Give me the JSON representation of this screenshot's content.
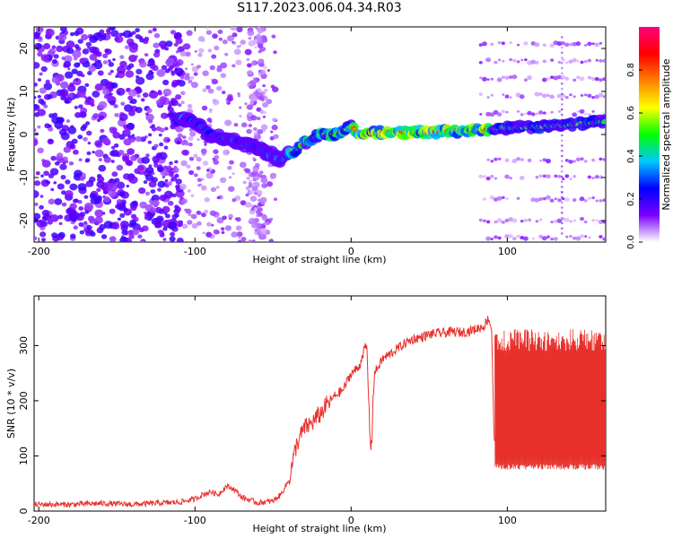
{
  "title": "S117.2023.006.04.34.R03",
  "chart_data": [
    {
      "type": "heatmap",
      "xlabel": "Height of straight line (km)",
      "ylabel": "Frequency (Hz)",
      "xlim": [
        -203,
        163
      ],
      "ylim": [
        -25,
        25
      ],
      "xticks": [
        -200,
        -100,
        0,
        100
      ],
      "yticks": [
        -20,
        -10,
        0,
        10,
        20
      ],
      "colorbar": {
        "label": "Normalized spectral amplitude",
        "range": [
          0,
          1
        ],
        "ticks": [
          0.0,
          0.2,
          0.4,
          0.6,
          0.8
        ],
        "tick_labels": [
          "0.0",
          "0.2",
          "0.4",
          "0.6",
          "0.8"
        ],
        "colors": [
          "#ffffff",
          "#7a00ff",
          "#0000ff",
          "#00c8ff",
          "#00ff00",
          "#ffff00",
          "#ff8000",
          "#ff0000",
          "#ff0080"
        ]
      },
      "ridge": [
        {
          "x": -110,
          "y": 4
        },
        {
          "x": -100,
          "y": 3
        },
        {
          "x": -90,
          "y": 0
        },
        {
          "x": -80,
          "y": -1
        },
        {
          "x": -60,
          "y": -3
        },
        {
          "x": -45,
          "y": -6
        },
        {
          "x": -30,
          "y": -2
        },
        {
          "x": -20,
          "y": 0
        },
        {
          "x": -10,
          "y": 0
        },
        {
          "x": 0,
          "y": 2
        },
        {
          "x": 5,
          "y": 0
        },
        {
          "x": 20,
          "y": 0.5
        },
        {
          "x": 50,
          "y": 0.5
        },
        {
          "x": 80,
          "y": 1
        },
        {
          "x": 100,
          "y": 1.5
        },
        {
          "x": 130,
          "y": 2
        },
        {
          "x": 163,
          "y": 3
        }
      ],
      "harmonic_bands_hz": [
        -24,
        -20,
        -15,
        -10,
        -6,
        5,
        9,
        13,
        17,
        21
      ]
    },
    {
      "type": "line",
      "xlabel": "Height of straight line (km)",
      "ylabel": "SNR (10 * v/v)",
      "xlim": [
        -203,
        163
      ],
      "ylim": [
        0,
        390
      ],
      "xticks": [
        -200,
        -100,
        0,
        100
      ],
      "yticks": [
        0,
        100,
        200,
        300
      ],
      "color": "#e8302a",
      "x": [
        -203,
        -180,
        -160,
        -140,
        -120,
        -110,
        -100,
        -95,
        -90,
        -85,
        -80,
        -75,
        -70,
        -60,
        -50,
        -45,
        -40,
        -35,
        -30,
        -25,
        -20,
        -15,
        -10,
        -5,
        0,
        5,
        8,
        10,
        12,
        13,
        14,
        15,
        18,
        20,
        25,
        30,
        35,
        40,
        45,
        50,
        55,
        60,
        65,
        70,
        75,
        80,
        85,
        88,
        90,
        91,
        92,
        95,
        100,
        110,
        120,
        130,
        140,
        150,
        163
      ],
      "y": [
        12,
        12,
        14,
        12,
        15,
        16,
        22,
        30,
        35,
        30,
        45,
        40,
        25,
        15,
        18,
        30,
        55,
        120,
        150,
        160,
        175,
        195,
        210,
        220,
        250,
        260,
        290,
        300,
        140,
        110,
        200,
        250,
        265,
        275,
        285,
        295,
        305,
        312,
        315,
        320,
        322,
        323,
        325,
        324,
        326,
        330,
        335,
        350,
        330,
        200,
        80,
        120,
        200,
        210,
        215,
        220,
        215,
        225,
        220
      ],
      "noise_band_top": 330,
      "noise_band_bottom": 75,
      "noise_band_from_x": 92
    }
  ]
}
